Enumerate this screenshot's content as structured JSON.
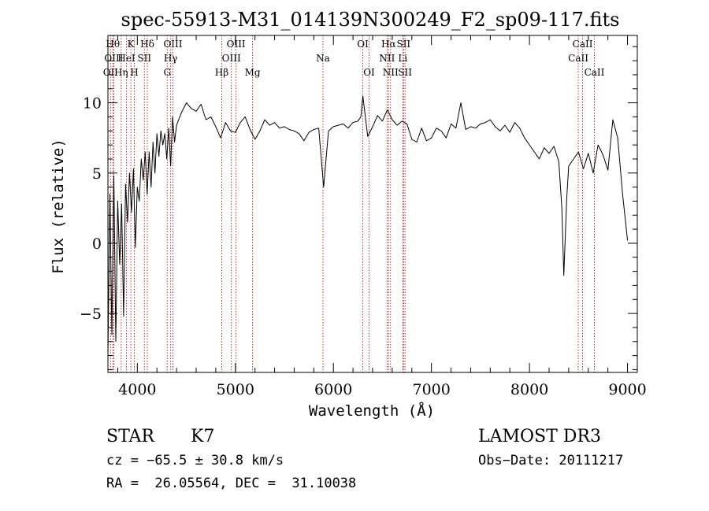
{
  "chart_data": {
    "type": "line",
    "title": "spec-55913-M31_014139N300249_F2_sp09-117.fits",
    "xlabel": "Wavelength (Å)",
    "ylabel": "Flux (relative)",
    "xlim": [
      3700,
      9100
    ],
    "ylim": [
      -9.2,
      14.8
    ],
    "x_ticks": [
      4000,
      5000,
      6000,
      7000,
      8000,
      9000
    ],
    "x_tick_labels": [
      "4000",
      "5000",
      "6000",
      "7000",
      "8000",
      "9000"
    ],
    "y_ticks": [
      -5,
      0,
      5,
      10
    ],
    "y_tick_labels": [
      "−5",
      "0",
      "5",
      "10"
    ],
    "grid": false,
    "colors": {
      "spectrum": "#000000",
      "line_markers": "#b22222",
      "axes": "#000000"
    },
    "spectral_lines": [
      {
        "label": "OII",
        "wavelength": 3727,
        "row": 2
      },
      {
        "label": "Hθ",
        "wavelength": 3750,
        "row": 0
      },
      {
        "label": "OIII",
        "wavelength": 3760,
        "row": 1
      },
      {
        "label": "Hη",
        "wavelength": 3835,
        "row": 2
      },
      {
        "label": "HeI",
        "wavelength": 3889,
        "row": 1
      },
      {
        "label": "K",
        "wavelength": 3934,
        "row": 0
      },
      {
        "label": "H",
        "wavelength": 3969,
        "row": 2
      },
      {
        "label": "SII",
        "wavelength": 4072,
        "row": 1
      },
      {
        "label": "Hδ",
        "wavelength": 4102,
        "row": 0
      },
      {
        "label": "G",
        "wavelength": 4305,
        "row": 2
      },
      {
        "label": "Hγ",
        "wavelength": 4340,
        "row": 1
      },
      {
        "label": "OIII",
        "wavelength": 4363,
        "row": 0
      },
      {
        "label": "Hβ",
        "wavelength": 4861,
        "row": 2
      },
      {
        "label": "OIII",
        "wavelength": 4959,
        "row": 1
      },
      {
        "label": "OIII",
        "wavelength": 5007,
        "row": 0
      },
      {
        "label": "Mg",
        "wavelength": 5175,
        "row": 2
      },
      {
        "label": "Na",
        "wavelength": 5893,
        "row": 1
      },
      {
        "label": "OI",
        "wavelength": 6300,
        "row": 0
      },
      {
        "label": "OI",
        "wavelength": 6364,
        "row": 2
      },
      {
        "label": "NII",
        "wavelength": 6548,
        "row": 1
      },
      {
        "label": "Hα",
        "wavelength": 6563,
        "row": 0
      },
      {
        "label": "NII",
        "wavelength": 6583,
        "row": 2
      },
      {
        "label": "SII",
        "wavelength": 6716,
        "row": 0
      },
      {
        "label": "Li",
        "wavelength": 6708,
        "row": 1
      },
      {
        "label": "SII",
        "wavelength": 6731,
        "row": 2
      },
      {
        "label": "CaII",
        "wavelength": 8498,
        "row": 1
      },
      {
        "label": "CaII",
        "wavelength": 8542,
        "row": 0
      },
      {
        "label": "CaII",
        "wavelength": 8662,
        "row": 2
      }
    ],
    "series": [
      {
        "x": [
          3700,
          3720,
          3740,
          3760,
          3780,
          3800,
          3820,
          3840,
          3860,
          3880,
          3900,
          3920,
          3940,
          3960,
          3980,
          4000,
          4020,
          4040,
          4060,
          4080,
          4100,
          4120,
          4140,
          4160,
          4180,
          4200,
          4220,
          4240,
          4260,
          4280,
          4300,
          4320,
          4340,
          4360,
          4380,
          4400,
          4450,
          4500,
          4550,
          4600,
          4650,
          4700,
          4750,
          4800,
          4850,
          4900,
          4950,
          5000,
          5050,
          5100,
          5150,
          5200,
          5250,
          5300,
          5350,
          5400,
          5450,
          5500,
          5550,
          5600,
          5650,
          5700,
          5750,
          5800,
          5850,
          5900,
          5950,
          6000,
          6050,
          6100,
          6150,
          6200,
          6250,
          6280,
          6300,
          6350,
          6400,
          6450,
          6500,
          6550,
          6600,
          6650,
          6700,
          6750,
          6800,
          6850,
          6900,
          6950,
          7000,
          7050,
          7100,
          7150,
          7200,
          7250,
          7300,
          7350,
          7400,
          7450,
          7500,
          7550,
          7600,
          7650,
          7700,
          7750,
          7800,
          7850,
          7900,
          7950,
          8000,
          8050,
          8100,
          8150,
          8200,
          8250,
          8300,
          8330,
          8350,
          8380,
          8400,
          8450,
          8500,
          8550,
          8600,
          8650,
          8700,
          8750,
          8800,
          8850,
          8900,
          8950,
          9000
        ],
        "values": [
          -8.0,
          3.5,
          -6.5,
          4.8,
          -7.0,
          3.0,
          -1.5,
          2.8,
          -5.2,
          4.2,
          1.5,
          5.0,
          2.2,
          5.3,
          -0.3,
          4.0,
          3.0,
          6.0,
          4.5,
          6.5,
          3.5,
          6.5,
          4.0,
          7.2,
          5.0,
          7.8,
          6.2,
          8.0,
          7.0,
          7.8,
          6.0,
          8.2,
          5.5,
          9.0,
          7.2,
          8.4,
          9.3,
          10.0,
          9.6,
          9.4,
          9.9,
          8.8,
          9.0,
          8.3,
          7.5,
          8.6,
          8.0,
          7.9,
          8.6,
          9.0,
          8.1,
          7.4,
          8.0,
          8.8,
          8.4,
          8.6,
          8.2,
          8.3,
          8.1,
          8.0,
          7.8,
          7.3,
          7.9,
          8.1,
          8.2,
          4.0,
          8.0,
          8.3,
          8.4,
          8.5,
          8.2,
          8.6,
          8.7,
          9.0,
          10.5,
          7.6,
          8.3,
          9.1,
          8.7,
          9.5,
          8.8,
          8.4,
          8.7,
          8.5,
          7.4,
          7.2,
          8.2,
          7.3,
          7.5,
          8.2,
          8.0,
          7.5,
          8.5,
          8.2,
          10.0,
          8.1,
          8.3,
          8.2,
          8.5,
          8.6,
          8.8,
          8.3,
          8.0,
          8.4,
          7.9,
          8.6,
          8.2,
          7.5,
          7.0,
          6.5,
          6.0,
          6.8,
          6.4,
          6.9,
          5.8,
          2.5,
          -2.3,
          3.2,
          5.5,
          6.0,
          6.5,
          5.3,
          6.4,
          5.0,
          7.0,
          6.3,
          5.2,
          8.8,
          7.5,
          3.5,
          0.2
        ]
      }
    ]
  },
  "annotations": {
    "object_class": "STAR",
    "subclass": "K7",
    "survey": "LAMOST DR3",
    "redshift_line": "cz = −65.5 ± 30.8 km/s",
    "obs_date_line": "Obs−Date: 20111217",
    "coords_line": "RA =  26.05564, DEC =  31.10038"
  }
}
